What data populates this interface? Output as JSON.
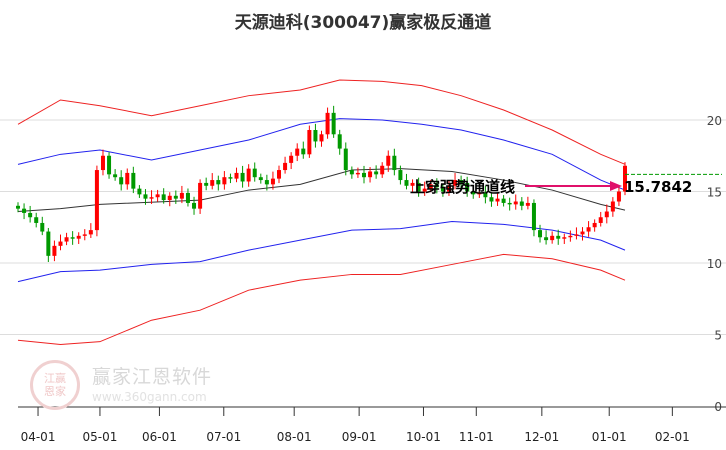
{
  "title": "天源迪科(300047)赢家极反通道",
  "watermark": {
    "name": "赢家江恩软件",
    "url": "www.360gann.com",
    "seal": "江赢恩家"
  },
  "colors": {
    "up": "#ff0000",
    "down": "#009900",
    "ma": "#333333",
    "inner": "#2222ee",
    "outer": "#ee2222",
    "arrow": "#e0106a",
    "ref": "#009900"
  },
  "chart_data": {
    "type": "candlestick",
    "title": "天源迪科(300047)赢家极反通道",
    "ylim": [
      0,
      25.5
    ],
    "y_ticks": [
      0,
      5,
      10,
      15,
      20
    ],
    "y_tick_labels": [
      "0",
      "5",
      "10",
      "15",
      "20"
    ],
    "x_ticks": [
      {
        "label": "04-01",
        "day": 3.3
      },
      {
        "label": "05-01",
        "day": 13.5
      },
      {
        "label": "06-01",
        "day": 23.3
      },
      {
        "label": "07-01",
        "day": 33.9
      },
      {
        "label": "08-01",
        "day": 45.5
      },
      {
        "label": "09-01",
        "day": 56.2
      },
      {
        "label": "10-01",
        "day": 66.8
      },
      {
        "label": "11-01",
        "day": 75.5
      },
      {
        "label": "12-01",
        "day": 86.3
      },
      {
        "label": "01-01",
        "day": 97.4
      },
      {
        "label": "02-01",
        "day": 107.8
      }
    ],
    "xlim": [
      0,
      117
    ],
    "closes": [
      13.8,
      13.5,
      13.2,
      12.8,
      12.2,
      10.5,
      11.2,
      11.5,
      11.8,
      11.7,
      11.9,
      12.0,
      12.3,
      16.5,
      17.5,
      16.2,
      16.0,
      15.5,
      16.3,
      15.2,
      14.8,
      14.5,
      14.6,
      14.8,
      14.4,
      14.7,
      14.5,
      14.9,
      14.2,
      13.8,
      15.6,
      15.4,
      15.8,
      15.5,
      16.0,
      15.9,
      16.3,
      15.7,
      16.6,
      16.0,
      15.8,
      15.5,
      15.9,
      16.5,
      17.0,
      17.5,
      18.0,
      17.6,
      19.3,
      18.5,
      19.0,
      20.5,
      19.0,
      18.0,
      16.5,
      16.2,
      16.3,
      16.0,
      16.4,
      16.2,
      16.8,
      17.5,
      16.5,
      15.8,
      15.4,
      15.6,
      15.0,
      15.2,
      15.5,
      15.3,
      15.0,
      15.4,
      15.8,
      15.6,
      15.0,
      14.8,
      14.9,
      14.6,
      14.3,
      14.5,
      14.2,
      14.1,
      14.3,
      14.0,
      14.2,
      12.3,
      11.8,
      11.6,
      11.9,
      11.7,
      11.8,
      11.9,
      12.0,
      12.2,
      12.5,
      12.8,
      13.2,
      13.6,
      14.3,
      15.0,
      16.8
    ],
    "series": [
      {
        "name": "middle",
        "days": [
          0,
          7,
          13.5,
          30,
          38,
          46.5,
          55,
          63,
          71.5,
          80,
          88,
          96,
          100
        ],
        "values": [
          13.6,
          13.8,
          14.1,
          14.4,
          15.1,
          15.5,
          16.5,
          16.6,
          16.4,
          15.8,
          15.1,
          14.1,
          13.7
        ]
      },
      {
        "name": "inner-upper",
        "days": [
          0,
          7,
          13.5,
          22,
          30,
          38,
          46.5,
          53,
          60,
          66.5,
          73,
          80,
          88,
          96,
          100
        ],
        "values": [
          16.9,
          17.6,
          17.9,
          17.2,
          17.9,
          18.6,
          19.7,
          20.1,
          20.0,
          19.7,
          19.3,
          18.6,
          17.6,
          15.8,
          15.1
        ]
      },
      {
        "name": "inner-lower",
        "days": [
          0,
          7,
          13.5,
          22,
          30,
          38,
          46.5,
          55,
          63,
          71.5,
          80,
          88,
          96,
          100
        ],
        "values": [
          8.7,
          9.4,
          9.5,
          9.9,
          10.1,
          10.9,
          11.6,
          12.3,
          12.4,
          12.9,
          12.7,
          12.3,
          11.6,
          10.9
        ]
      },
      {
        "name": "outer-upper",
        "days": [
          0,
          7,
          13.5,
          22,
          30,
          38,
          46.5,
          53,
          60,
          66.5,
          73,
          80,
          88,
          96,
          100
        ],
        "values": [
          19.7,
          21.4,
          21.0,
          20.3,
          21.0,
          21.7,
          22.1,
          22.8,
          22.7,
          22.4,
          21.7,
          20.7,
          19.3,
          17.6,
          16.9
        ]
      },
      {
        "name": "outer-lower",
        "days": [
          0,
          7,
          13.5,
          22,
          30,
          38,
          46.5,
          55,
          63,
          71.5,
          80,
          88,
          96,
          100
        ],
        "values": [
          4.6,
          4.3,
          4.5,
          6.0,
          6.7,
          8.1,
          8.8,
          9.2,
          9.2,
          9.9,
          10.6,
          10.3,
          9.5,
          8.8
        ]
      }
    ],
    "annotation": {
      "text": "上穿强势通道线",
      "value_label": "15.7842",
      "value": 15.7842,
      "ref_line": 16.2
    }
  }
}
